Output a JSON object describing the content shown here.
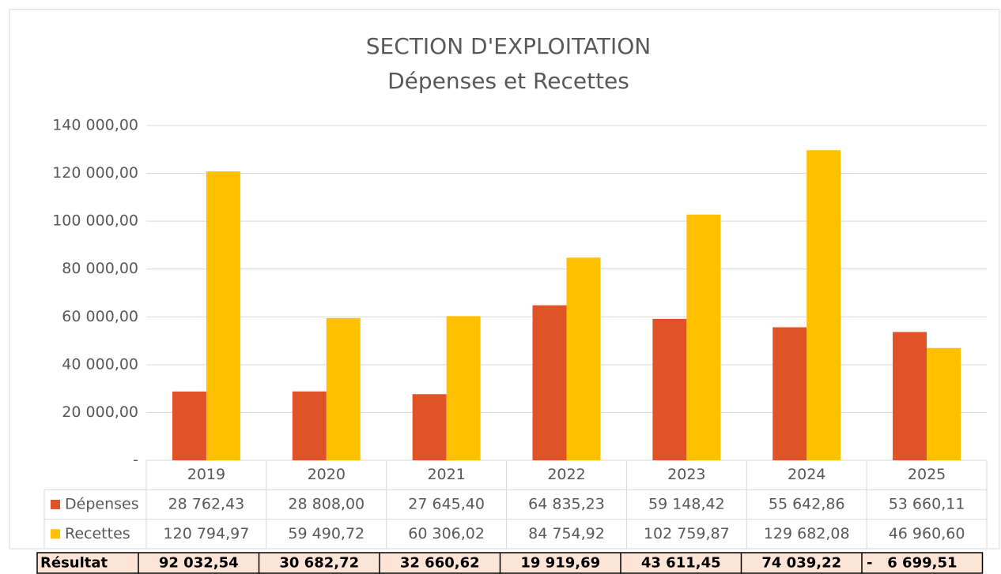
{
  "chart_data": {
    "type": "bar",
    "title": "SECTION D'EXPLOITATION",
    "subtitle": "Dépenses et Recettes",
    "categories": [
      "2019",
      "2020",
      "2021",
      "2022",
      "2023",
      "2024",
      "2025"
    ],
    "series": [
      {
        "name": "Dépenses",
        "color": "#e05327",
        "values": [
          28762.43,
          28808.0,
          27645.4,
          64835.23,
          59148.42,
          55642.86,
          53660.11
        ],
        "value_labels": [
          "28 762,43",
          "28 808,00",
          "27 645,40",
          "64 835,23",
          "59 148,42",
          "55 642,86",
          "53 660,11"
        ]
      },
      {
        "name": "Recettes",
        "color": "#ffc000",
        "values": [
          120794.97,
          59490.72,
          60306.02,
          84754.92,
          102759.87,
          129682.08,
          46960.6
        ],
        "value_labels": [
          "120 794,97",
          "59 490,72",
          "60 306,02",
          "84 754,92",
          "102 759,87",
          "129 682,08",
          "46 960,60"
        ]
      }
    ],
    "ylim": [
      0,
      140000
    ],
    "yticks": [
      {
        "value": 0,
        "label": "-"
      },
      {
        "value": 20000,
        "label": "20 000,00"
      },
      {
        "value": 40000,
        "label": "40 000,00"
      },
      {
        "value": 60000,
        "label": "60 000,00"
      },
      {
        "value": 80000,
        "label": "80 000,00"
      },
      {
        "value": 100000,
        "label": "100 000,00"
      },
      {
        "value": 120000,
        "label": "120 000,00"
      },
      {
        "value": 140000,
        "label": "140 000,00"
      }
    ],
    "grid": true,
    "result": {
      "name": "Résultat",
      "values": [
        92032.54,
        30682.72,
        32660.62,
        19919.69,
        43611.45,
        74039.22,
        -6699.51
      ],
      "value_labels": [
        "92 032,54",
        "30 682,72",
        "32 660,62",
        "19 919,69",
        "43 611,45",
        "74 039,22",
        "-   6 699,51"
      ]
    }
  }
}
